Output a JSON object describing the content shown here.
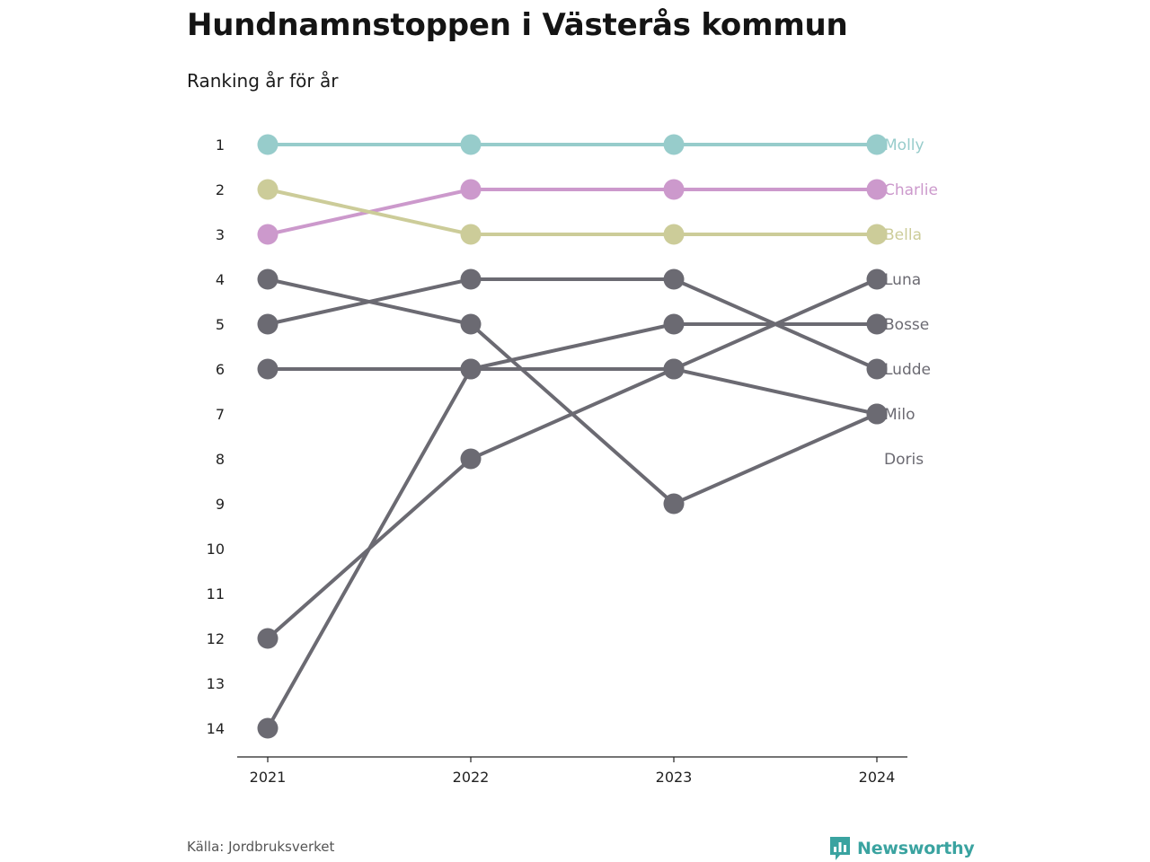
{
  "title": "Hundnamnstoppen i Västerås kommun",
  "subtitle": "Ranking år för år",
  "source": "Källa: Jordbruksverket",
  "brand": {
    "name": "Newsworthy",
    "icon": "newsworthy-logo-icon",
    "color": "#3aa3a0"
  },
  "chart_data": {
    "type": "line",
    "subtype": "bump",
    "x": [
      "2021",
      "2022",
      "2023",
      "2024"
    ],
    "y_ticks": [
      1,
      2,
      3,
      4,
      5,
      6,
      7,
      8,
      9,
      10,
      11,
      12,
      13,
      14
    ],
    "ylim": [
      14,
      1
    ],
    "y_reversed": true,
    "grid": false,
    "legend": "end labels",
    "series": [
      {
        "name": "Molly",
        "color": "#97cccb",
        "values": [
          1,
          1,
          1,
          1
        ]
      },
      {
        "name": "Charlie",
        "color": "#cc99cc",
        "values": [
          3,
          2,
          2,
          2
        ]
      },
      {
        "name": "Bella",
        "color": "#cccc99",
        "values": [
          2,
          3,
          3,
          3
        ]
      },
      {
        "name": "Luna",
        "color": "#6b6a72",
        "values": [
          12,
          8,
          6,
          4
        ]
      },
      {
        "name": "Bosse",
        "color": "#6b6a72",
        "values": [
          14,
          6,
          5,
          5
        ]
      },
      {
        "name": "Ludde",
        "color": "#6b6a72",
        "values": [
          5,
          4,
          4,
          6
        ]
      },
      {
        "name": "Milo",
        "color": "#6b6a72",
        "values": [
          4,
          5,
          9,
          7
        ]
      },
      {
        "name": "Doris",
        "color": "#6b6a72",
        "values": [
          6,
          6,
          6,
          7
        ]
      }
    ],
    "end_labels": [
      "Molly",
      "Charlie",
      "Bella",
      "Luna",
      "Bosse",
      "Ludde",
      "Milo",
      "Doris"
    ],
    "end_label_colors": [
      "#97cccb",
      "#cc99cc",
      "#cccc99",
      "#6b6a72",
      "#6b6a72",
      "#6b6a72",
      "#6b6a72",
      "#6b6a72"
    ]
  }
}
